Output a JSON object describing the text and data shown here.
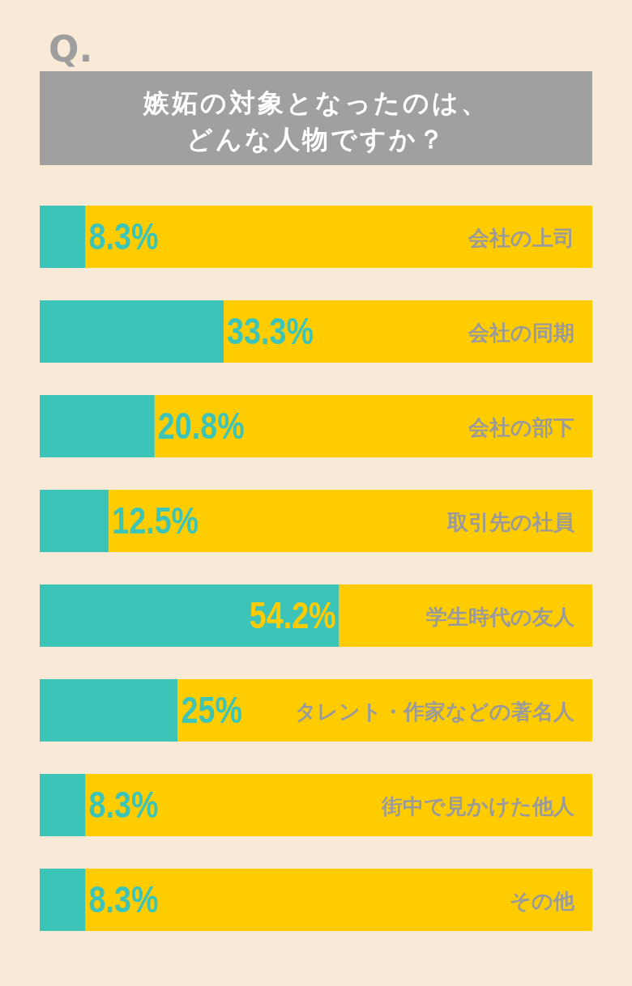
{
  "chart_data": {
    "type": "bar",
    "orientation": "horizontal",
    "stacked": true,
    "title": "嫉妬の対象となったのは、どんな人物ですか？",
    "annotations": [
      "Q."
    ],
    "categories": [
      "会社の上司",
      "会社の同期",
      "会社の部下",
      "取引先の社員",
      "学生時代の友人",
      "タレント・作家などの著名人",
      "街中で見かけた他人",
      "その他"
    ],
    "series": [
      {
        "color": "#3cc4b9",
        "values": [
          8.3,
          33.3,
          20.8,
          12.5,
          54.2,
          25,
          8.3,
          8.3
        ],
        "value_labels": [
          "8.3%",
          "33.3%",
          "20.8%",
          "12.5%",
          "54.2%",
          "25%",
          "8.3%",
          "8.3%"
        ]
      },
      {
        "color": "#ffcc00",
        "values": [
          91.7,
          66.7,
          79.2,
          87.5,
          45.8,
          75,
          91.7,
          91.7
        ]
      }
    ],
    "xlim": [
      0,
      100
    ],
    "tick_labels": "y"
  }
}
